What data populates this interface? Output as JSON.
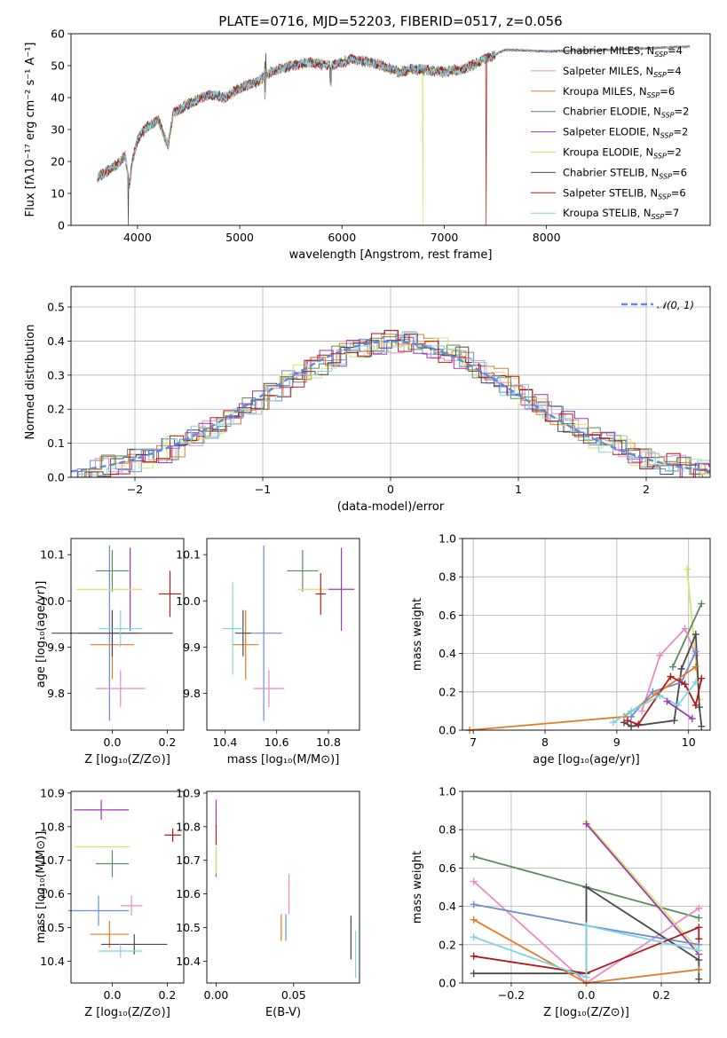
{
  "colors": {
    "Chabrier MILES": "#6b8cd6",
    "Salpeter MILES": "#e88bc4",
    "Kroupa MILES": "#e07b2a",
    "Chabrier ELODIE": "#5a8a5f",
    "Salpeter ELODIE": "#a035b5",
    "Kroupa ELODIE": "#d6e36a",
    "Chabrier STELIB": "#4a4a4a",
    "Salpeter STELIB": "#b01a1a",
    "Kroupa STELIB": "#7fd3e0",
    "normal": "#5b8cdb"
  },
  "chart_data": [
    {
      "id": "spectrum",
      "type": "line",
      "title": "PLATE=0716, MJD=52203, FIBERID=0517, z=0.056",
      "xlabel": "wavelength [Angstrom, rest frame]",
      "ylabel": "Flux [fλ10⁻¹⁷ erg cm⁻² s⁻¹ A⁻¹]",
      "xlim": [
        3350,
        9600
      ],
      "ylim": [
        0,
        60
      ],
      "xticks": [
        "4000",
        "5000",
        "6000",
        "7000",
        "8000"
      ],
      "yticks": [
        "0",
        "10",
        "20",
        "30",
        "40",
        "50",
        "60"
      ],
      "legend": [
        {
          "name": "Chabrier MILES",
          "nssp": "4"
        },
        {
          "name": "Salpeter MILES",
          "nssp": "4"
        },
        {
          "name": "Kroupa MILES",
          "nssp": "6"
        },
        {
          "name": "Chabrier ELODIE",
          "nssp": "2"
        },
        {
          "name": "Salpeter ELODIE",
          "nssp": "2"
        },
        {
          "name": "Kroupa ELODIE",
          "nssp": "2"
        },
        {
          "name": "Chabrier STELIB",
          "nssp": "6"
        },
        {
          "name": "Salpeter STELIB",
          "nssp": "6"
        },
        {
          "name": "Kroupa STELIB",
          "nssp": "7"
        }
      ],
      "legend_placement": "top-right",
      "continuum": [
        [
          3610,
          15
        ],
        [
          3700,
          17
        ],
        [
          3800,
          19
        ],
        [
          3880,
          22
        ],
        [
          3920,
          12
        ],
        [
          3950,
          20
        ],
        [
          4000,
          27
        ],
        [
          4100,
          31
        ],
        [
          4200,
          33
        ],
        [
          4300,
          25
        ],
        [
          4350,
          35
        ],
        [
          4500,
          38
        ],
        [
          4700,
          41
        ],
        [
          4860,
          40
        ],
        [
          5000,
          43
        ],
        [
          5175,
          45
        ],
        [
          5300,
          48
        ],
        [
          5500,
          50
        ],
        [
          5700,
          51
        ],
        [
          5900,
          50
        ],
        [
          6100,
          52
        ],
        [
          6300,
          51
        ],
        [
          6563,
          48
        ],
        [
          6700,
          49
        ],
        [
          7000,
          48
        ],
        [
          7200,
          49
        ],
        [
          7400,
          52
        ],
        [
          7600,
          55
        ],
        [
          8000,
          54.5
        ],
        [
          8500,
          54.8
        ],
        [
          9400,
          56
        ]
      ],
      "drops": [
        {
          "series": "Chabrier STELIB",
          "x": 3910,
          "to": 0
        },
        {
          "series": "Kroupa ELODIE",
          "x": 6790,
          "to": 0
        },
        {
          "series": "Salpeter STELIB",
          "x": 7410,
          "to": 0
        }
      ]
    },
    {
      "id": "residuals",
      "type": "histogram",
      "xlabel": "(data-model)/error",
      "ylabel": "Normed distribution",
      "xlim": [
        -2.5,
        2.5
      ],
      "ylim": [
        0,
        0.56
      ],
      "xticks": [
        "−2",
        "−1",
        "0",
        "1",
        "2"
      ],
      "yticks": [
        "0.0",
        "0.1",
        "0.2",
        "0.3",
        "0.4",
        "0.5"
      ],
      "grid": true,
      "legend_label": "𝒩(0, 1)",
      "legend_placement": "top-right"
    },
    {
      "id": "age_vs_Z",
      "type": "errorbar",
      "xlabel": "Z [log₁₀(Z/Z⊙)]",
      "ylabel": "age  [log₁₀(age/yr)]",
      "xlim": [
        -0.15,
        0.26
      ],
      "ylim": [
        9.72,
        10.135
      ],
      "xticks": [
        "0.0",
        "0.2"
      ],
      "yticks": [
        "9.8",
        "9.9",
        "10.0",
        "10.1"
      ],
      "points": [
        {
          "series": "Chabrier MILES",
          "x": -0.01,
          "y": 9.93,
          "xerr": 0.11,
          "yerr": 0.19
        },
        {
          "series": "Salpeter MILES",
          "x": 0.03,
          "y": 9.81,
          "xerr": 0.09,
          "yerr": 0.04
        },
        {
          "series": "Kroupa MILES",
          "x": 0.0,
          "y": 9.905,
          "xerr": 0.08,
          "yerr": 0.075
        },
        {
          "series": "Chabrier ELODIE",
          "x": 0.0,
          "y": 10.065,
          "xerr": 0.06,
          "yerr": 0.045
        },
        {
          "series": "Salpeter ELODIE",
          "x": 0.065,
          "y": 10.025,
          "xerr": 0.0,
          "yerr": 0.09
        },
        {
          "series": "Kroupa ELODIE",
          "x": -0.01,
          "y": 10.025,
          "xerr": 0.12,
          "yerr": 0.0
        },
        {
          "series": "Chabrier STELIB",
          "x": 0.0,
          "y": 9.93,
          "xerr": 0.22,
          "yerr": 0.05
        },
        {
          "series": "Salpeter STELIB",
          "x": 0.21,
          "y": 10.015,
          "xerr": 0.04,
          "yerr": 0.05
        },
        {
          "series": "Kroupa STELIB",
          "x": 0.03,
          "y": 9.94,
          "xerr": 0.08,
          "yerr": 0.04
        }
      ]
    },
    {
      "id": "age_vs_mass",
      "type": "errorbar",
      "xlabel": "mass [log₁₀(M/M⊙)]",
      "ylabel": "",
      "xlim": [
        10.33,
        10.92
      ],
      "ylim": [
        9.72,
        10.135
      ],
      "xticks": [
        "10.4",
        "10.6",
        "10.8"
      ],
      "yticks": [
        "9.8",
        "9.9",
        "10.0",
        "10.1"
      ],
      "points": [
        {
          "series": "Chabrier MILES",
          "x": 10.55,
          "y": 9.93,
          "xerr": 0.07,
          "yerr": 0.19
        },
        {
          "series": "Salpeter MILES",
          "x": 10.57,
          "y": 9.81,
          "xerr": 0.06,
          "yerr": 0.04
        },
        {
          "series": "Kroupa MILES",
          "x": 10.48,
          "y": 9.905,
          "xerr": 0.05,
          "yerr": 0.075
        },
        {
          "series": "Chabrier ELODIE",
          "x": 10.7,
          "y": 10.065,
          "xerr": 0.06,
          "yerr": 0.045
        },
        {
          "series": "Salpeter ELODIE",
          "x": 10.85,
          "y": 10.025,
          "xerr": 0.05,
          "yerr": 0.09
        },
        {
          "series": "Kroupa ELODIE",
          "x": 10.74,
          "y": 10.025,
          "xerr": 0.06,
          "yerr": 0.0
        },
        {
          "series": "Chabrier STELIB",
          "x": 10.47,
          "y": 9.93,
          "xerr": 0.03,
          "yerr": 0.05
        },
        {
          "series": "Salpeter STELIB",
          "x": 10.77,
          "y": 10.015,
          "xerr": 0.02,
          "yerr": 0.045
        },
        {
          "series": "Kroupa STELIB",
          "x": 10.43,
          "y": 9.94,
          "xerr": 0.04,
          "yerr": 0.1
        }
      ]
    },
    {
      "id": "mass_vs_Z",
      "type": "errorbar",
      "xlabel": "Z [log₁₀(Z/Z⊙)]",
      "ylabel": "mass [log₁₀(M/M⊙)]",
      "xlim": [
        -0.15,
        0.26
      ],
      "ylim": [
        10.335,
        10.905
      ],
      "xticks": [
        "0.0",
        "0.2"
      ],
      "yticks": [
        "10.4",
        "10.5",
        "10.6",
        "10.7",
        "10.8",
        "10.9"
      ],
      "points": [
        {
          "series": "Chabrier MILES",
          "x": -0.05,
          "y": 10.55,
          "xerr": 0.11,
          "yerr": 0.045
        },
        {
          "series": "Salpeter MILES",
          "x": 0.07,
          "y": 10.565,
          "xerr": 0.04,
          "yerr": 0.03
        },
        {
          "series": "Kroupa MILES",
          "x": -0.01,
          "y": 10.48,
          "xerr": 0.07,
          "yerr": 0.04
        },
        {
          "series": "Chabrier ELODIE",
          "x": 0.0,
          "y": 10.69,
          "xerr": 0.06,
          "yerr": 0.04
        },
        {
          "series": "Salpeter ELODIE",
          "x": -0.04,
          "y": 10.85,
          "xerr": 0.1,
          "yerr": 0.03
        },
        {
          "series": "Kroupa ELODIE",
          "x": -0.035,
          "y": 10.74,
          "xerr": 0.1,
          "yerr": 0.0
        },
        {
          "series": "Chabrier STELIB",
          "x": 0.08,
          "y": 10.45,
          "xerr": 0.12,
          "yerr": 0.03
        },
        {
          "series": "Salpeter STELIB",
          "x": 0.22,
          "y": 10.775,
          "xerr": 0.03,
          "yerr": 0.02
        },
        {
          "series": "Kroupa STELIB",
          "x": 0.03,
          "y": 10.43,
          "xerr": 0.08,
          "yerr": 0.02
        }
      ]
    },
    {
      "id": "mass_vs_ebv",
      "type": "errorbar",
      "xlabel": "E(B-V)",
      "ylabel": "",
      "xlim": [
        -0.006,
        0.0925
      ],
      "ylim": [
        10.335,
        10.905
      ],
      "xticks": [
        "0.00",
        "0.05"
      ],
      "yticks": [
        "10.4",
        "10.5",
        "10.6",
        "10.7",
        "10.8",
        "10.9"
      ],
      "points": [
        {
          "series": "Chabrier MILES",
          "x": 0.045,
          "y": 10.5,
          "xerr": 0.0,
          "yerr": 0.04
        },
        {
          "series": "Salpeter MILES",
          "x": 0.047,
          "y": 10.6,
          "xerr": 0.0,
          "yerr": 0.06
        },
        {
          "series": "Kroupa MILES",
          "x": 0.042,
          "y": 10.5,
          "xerr": 0.0,
          "yerr": 0.04
        },
        {
          "series": "Chabrier ELODIE",
          "x": 0.0,
          "y": 10.69,
          "xerr": 0.0,
          "yerr": 0.04
        },
        {
          "series": "Salpeter ELODIE",
          "x": 0.0,
          "y": 10.84,
          "xerr": 0.0,
          "yerr": 0.04
        },
        {
          "series": "Kroupa ELODIE",
          "x": 0.0,
          "y": 10.7,
          "xerr": 0.0,
          "yerr": 0.04
        },
        {
          "series": "Chabrier STELIB",
          "x": 0.087,
          "y": 10.47,
          "xerr": 0.0,
          "yerr": 0.065
        },
        {
          "series": "Salpeter STELIB",
          "x": 0.0,
          "y": 10.775,
          "xerr": 0.0,
          "yerr": 0.03
        },
        {
          "series": "Kroupa STELIB",
          "x": 0.09,
          "y": 10.42,
          "xerr": 0.0,
          "yerr": 0.07
        }
      ]
    },
    {
      "id": "weight_vs_age",
      "type": "line",
      "xlabel": "age  [log₁₀(age/yr)]",
      "ylabel": "mass weight",
      "xlim": [
        6.85,
        10.3
      ],
      "ylim": [
        0,
        1.0
      ],
      "xticks": [
        "7",
        "8",
        "9",
        "10"
      ],
      "yticks": [
        "0.0",
        "0.2",
        "0.4",
        "0.6",
        "0.8",
        "1.0"
      ],
      "grid": true,
      "series": [
        {
          "name": "Kroupa ELODIE",
          "points": [
            [
              9.98,
              0.84
            ],
            [
              10.15,
              0.16
            ]
          ]
        },
        {
          "name": "Chabrier ELODIE",
          "points": [
            [
              9.78,
              0.33
            ],
            [
              10.18,
              0.66
            ]
          ]
        },
        {
          "name": "Salpeter MILES",
          "points": [
            [
              9.35,
              0.1
            ],
            [
              9.6,
              0.39
            ],
            [
              9.95,
              0.53
            ],
            [
              10.1,
              0.39
            ]
          ]
        },
        {
          "name": "Chabrier STELIB",
          "points": [
            [
              9.1,
              0.04
            ],
            [
              9.2,
              0.02
            ],
            [
              9.8,
              0.05
            ],
            [
              9.9,
              0.32
            ],
            [
              10.1,
              0.5
            ],
            [
              10.15,
              0.12
            ],
            [
              10.18,
              0.02
            ]
          ]
        },
        {
          "name": "Chabrier MILES",
          "points": [
            [
              9.2,
              0.07
            ],
            [
              9.5,
              0.2
            ],
            [
              9.9,
              0.25
            ],
            [
              10.1,
              0.41
            ]
          ]
        },
        {
          "name": "Kroupa MILES",
          "points": [
            [
              6.95,
              0.0
            ],
            [
              9.1,
              0.07
            ],
            [
              9.55,
              0.19
            ],
            [
              10.1,
              0.33
            ]
          ]
        },
        {
          "name": "Salpeter STELIB",
          "points": [
            [
              9.15,
              0.05
            ],
            [
              9.3,
              0.03
            ],
            [
              9.75,
              0.28
            ],
            [
              9.95,
              0.24
            ],
            [
              10.1,
              0.13
            ],
            [
              10.18,
              0.27
            ]
          ]
        },
        {
          "name": "Kroupa STELIB",
          "points": [
            [
              8.95,
              0.04
            ],
            [
              9.2,
              0.1
            ],
            [
              9.6,
              0.18
            ],
            [
              9.85,
              0.13
            ],
            [
              10.1,
              0.25
            ]
          ]
        },
        {
          "name": "Salpeter ELODIE",
          "points": [
            [
              9.7,
              0.15
            ],
            [
              10.05,
              0.06
            ]
          ]
        }
      ]
    },
    {
      "id": "weight_vs_Z",
      "type": "line",
      "xlabel": "Z [log₁₀(Z/Z⊙)]",
      "ylabel": "mass weight",
      "xlim": [
        -0.33,
        0.33
      ],
      "ylim": [
        0,
        1.0
      ],
      "xticks": [
        "−0.2",
        "0.0",
        "0.2"
      ],
      "yticks": [
        "0.0",
        "0.2",
        "0.4",
        "0.6",
        "0.8",
        "1.0"
      ],
      "grid": true,
      "series": [
        {
          "name": "Chabrier ELODIE",
          "points": [
            [
              -0.3,
              0.66
            ],
            [
              0.3,
              0.34
            ]
          ]
        },
        {
          "name": "Kroupa ELODIE",
          "points": [
            [
              0.0,
              0.84
            ],
            [
              0.3,
              0.17
            ]
          ]
        },
        {
          "name": "Salpeter ELODIE",
          "points": [
            [
              0.0,
              0.83
            ],
            [
              0.3,
              0.15
            ]
          ]
        },
        {
          "name": "Salpeter MILES",
          "points": [
            [
              -0.3,
              0.53
            ],
            [
              0.0,
              0.0
            ],
            [
              0.3,
              0.39
            ]
          ]
        },
        {
          "name": "Chabrier STELIB",
          "points": [
            [
              -0.3,
              0.05
            ],
            [
              0.0,
              0.05
            ],
            [
              0.0,
              0.5
            ],
            [
              0.3,
              0.12
            ],
            [
              0.3,
              0.02
            ]
          ]
        },
        {
          "name": "Chabrier MILES",
          "points": [
            [
              -0.3,
              0.41
            ],
            [
              0.0,
              0.3
            ],
            [
              0.3,
              0.2
            ]
          ]
        },
        {
          "name": "Kroupa MILES",
          "points": [
            [
              -0.3,
              0.33
            ],
            [
              0.0,
              0.0
            ],
            [
              0.3,
              0.07
            ]
          ]
        },
        {
          "name": "Salpeter STELIB",
          "points": [
            [
              -0.3,
              0.14
            ],
            [
              0.0,
              0.05
            ],
            [
              0.3,
              0.29
            ],
            [
              0.3,
              0.23
            ]
          ]
        },
        {
          "name": "Kroupa STELIB",
          "points": [
            [
              -0.3,
              0.24
            ],
            [
              0.0,
              0.03
            ],
            [
              0.0,
              0.3
            ],
            [
              0.3,
              0.17
            ]
          ]
        }
      ]
    }
  ]
}
